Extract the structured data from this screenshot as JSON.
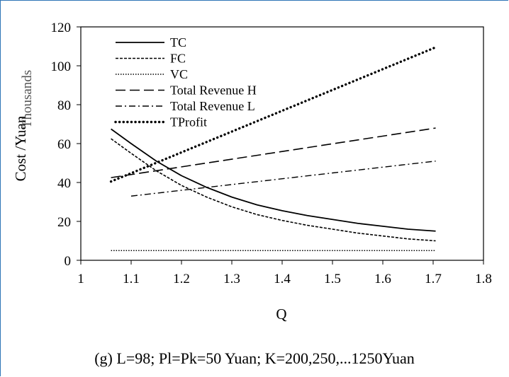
{
  "chart_data": {
    "type": "line",
    "ylabel": "Cost /Yuan",
    "y_multiplier_label": "Thousands",
    "xlabel": "Q",
    "xlim": [
      1,
      1.8
    ],
    "ylim": [
      0,
      120
    ],
    "x_ticks": [
      "1",
      "1.1",
      "1.2",
      "1.3",
      "1.4",
      "1.5",
      "1.6",
      "1.7",
      "1.8"
    ],
    "y_ticks": [
      "0",
      "20",
      "40",
      "60",
      "80",
      "100",
      "120"
    ],
    "grid": false,
    "legend_position": "top-left",
    "series": [
      {
        "name": "TC",
        "style": "solid",
        "x": [
          1.06,
          1.1,
          1.15,
          1.2,
          1.25,
          1.3,
          1.35,
          1.4,
          1.45,
          1.5,
          1.55,
          1.6,
          1.65,
          1.705
        ],
        "y": [
          67.5,
          60,
          51,
          43.5,
          37.5,
          32.5,
          28.5,
          25.5,
          23,
          21,
          19,
          17.5,
          16,
          15
        ]
      },
      {
        "name": "FC",
        "style": "short-dash",
        "x": [
          1.06,
          1.1,
          1.15,
          1.2,
          1.25,
          1.3,
          1.35,
          1.4,
          1.45,
          1.5,
          1.55,
          1.6,
          1.65,
          1.705
        ],
        "y": [
          62.5,
          55,
          46,
          38.5,
          32.5,
          27.5,
          23.5,
          20.5,
          18,
          16,
          14,
          12.5,
          11,
          10
        ]
      },
      {
        "name": "VC",
        "style": "dotted",
        "x": [
          1.06,
          1.705
        ],
        "y": [
          5,
          5
        ]
      },
      {
        "name": "Total Revenue H",
        "style": "long-dash",
        "x": [
          1.06,
          1.705
        ],
        "y": [
          42.5,
          68
        ]
      },
      {
        "name": "Total Revenue L",
        "style": "dash-dot",
        "x": [
          1.1,
          1.705
        ],
        "y": [
          33,
          51
        ]
      },
      {
        "name": "TProfit",
        "style": "heavy-dotted",
        "x": [
          1.06,
          1.705
        ],
        "y": [
          40.5,
          109.5
        ]
      }
    ]
  },
  "caption": "(g) L=98; Pl=Pk=50 Yuan; K=200,250,...1250Yuan"
}
